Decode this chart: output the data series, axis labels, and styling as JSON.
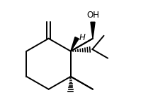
{
  "bg_color": "#ffffff",
  "line_color": "#000000",
  "lw": 1.4,
  "font_size_oh": 8.5,
  "font_size_h": 8.5,
  "oh_label": "OH",
  "h_label": "H",
  "figsize": [
    2.16,
    1.52
  ],
  "dpi": 100
}
